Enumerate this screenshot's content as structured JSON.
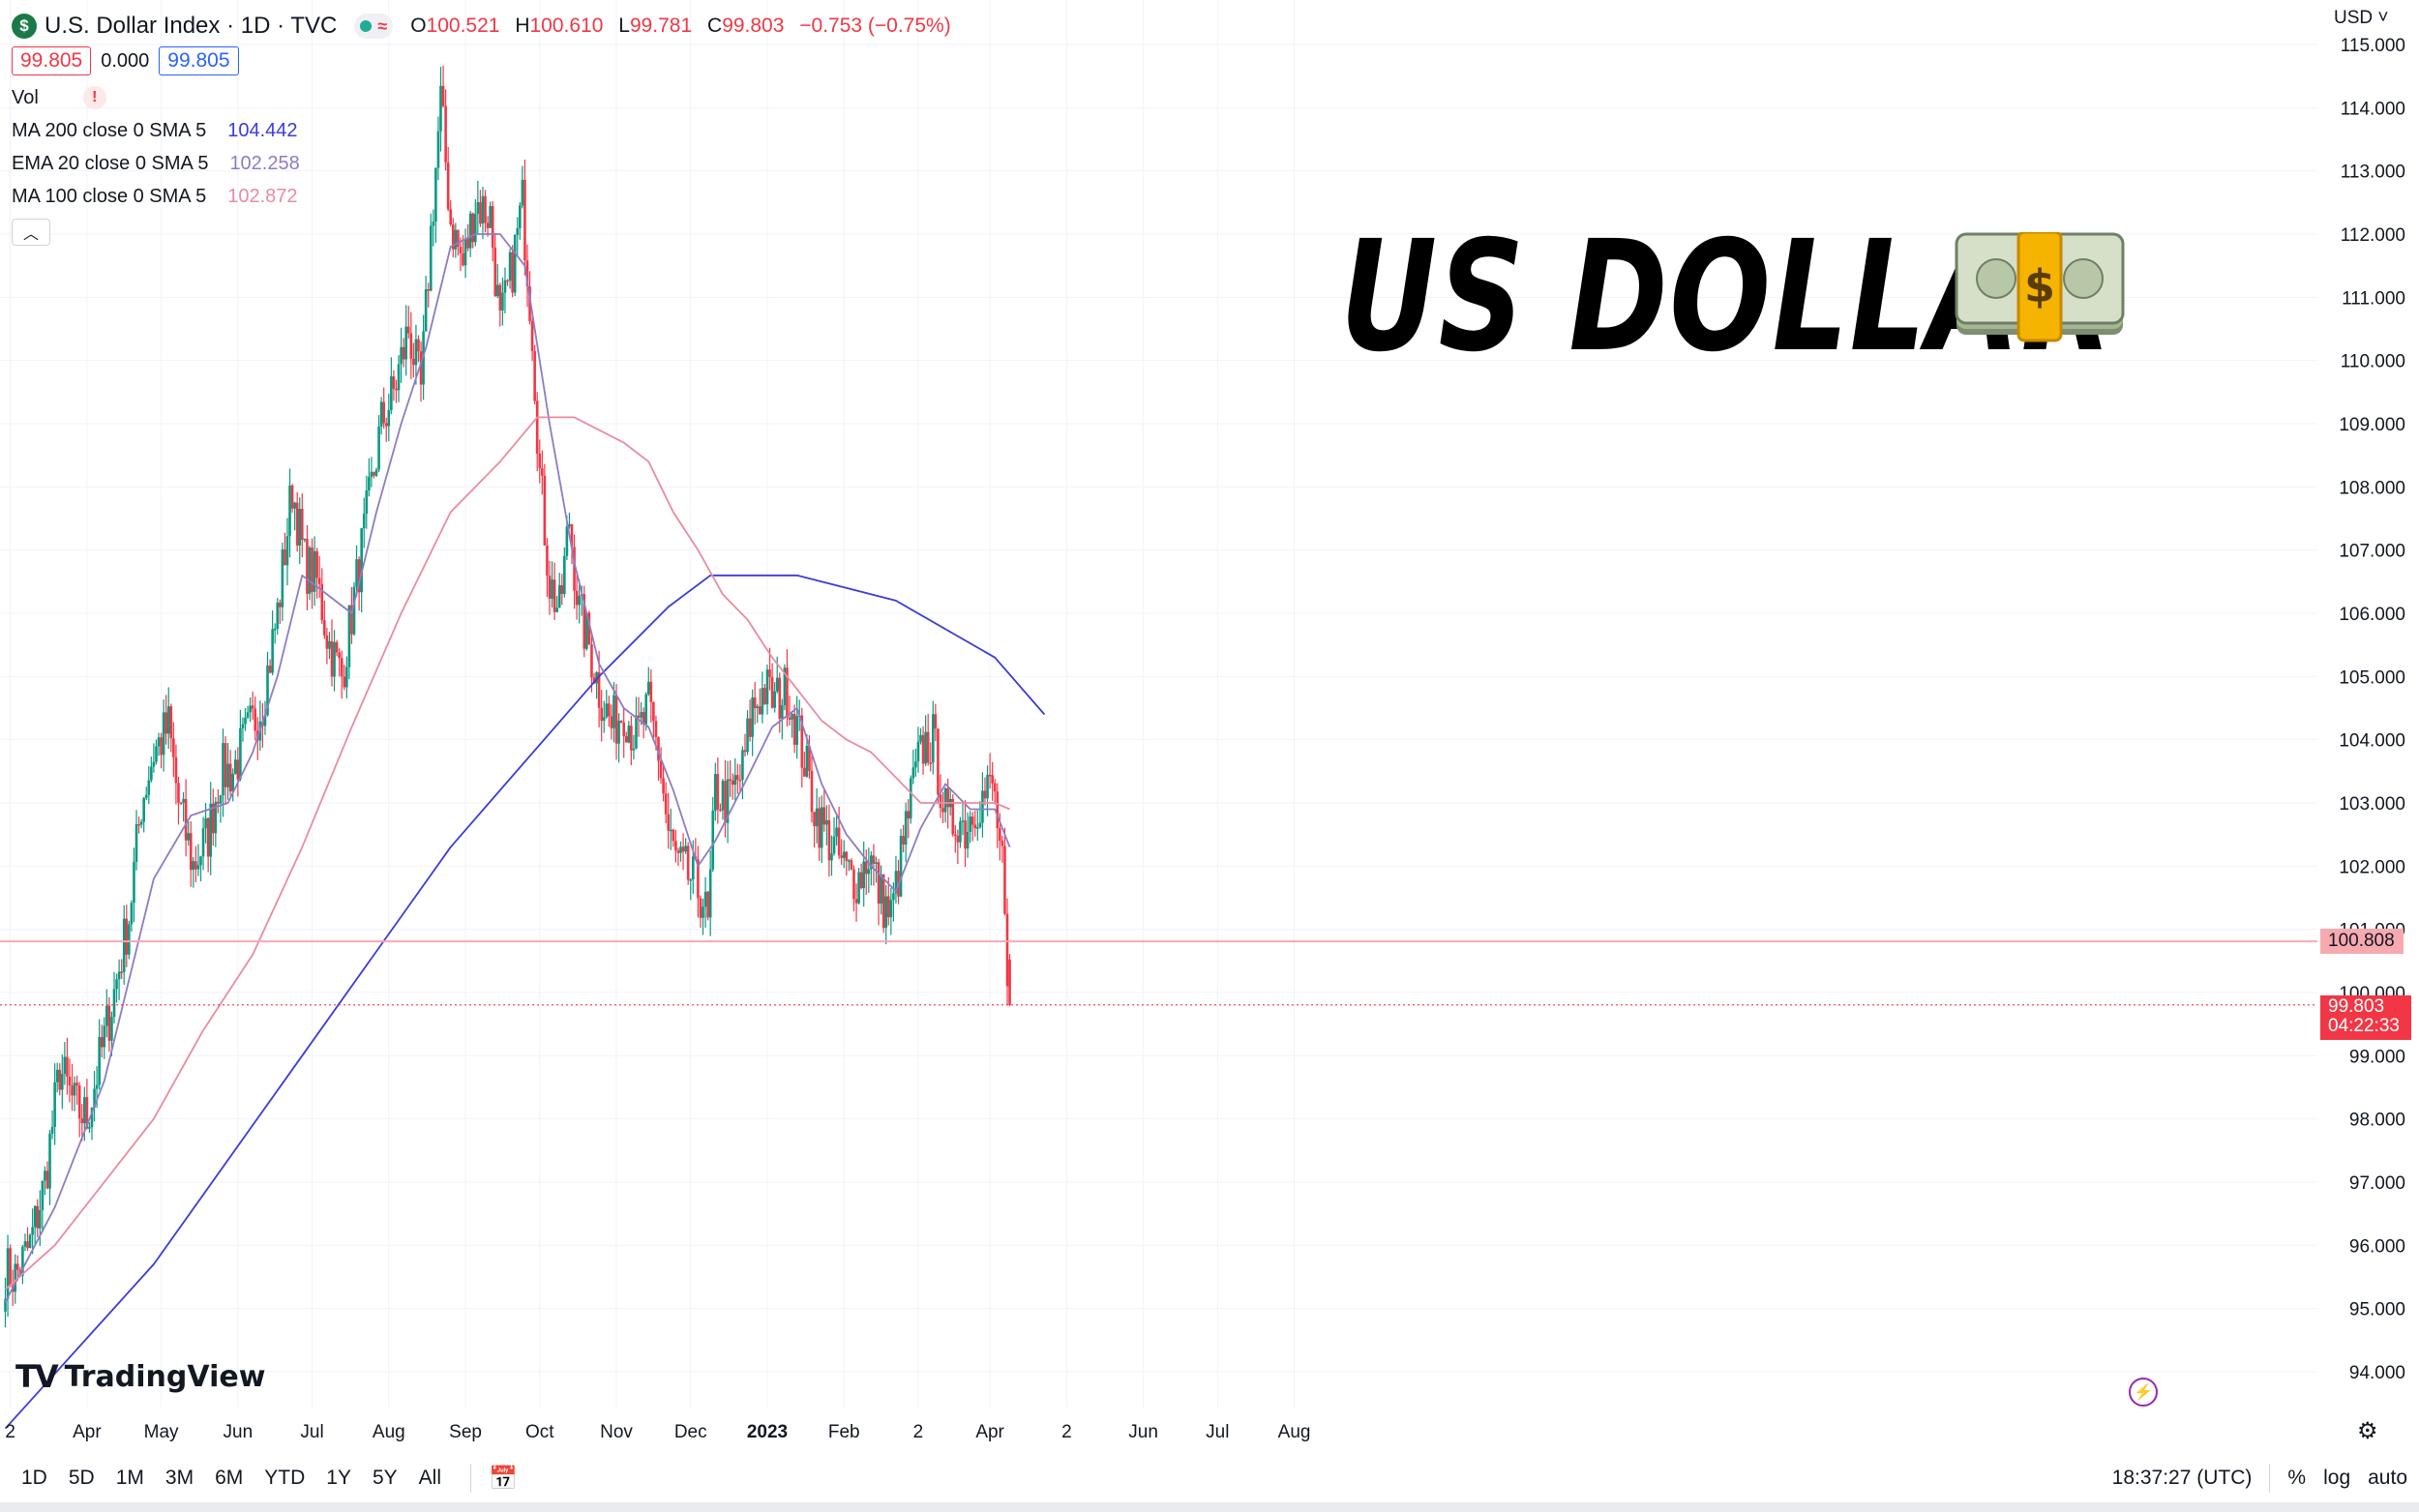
{
  "legend": {
    "symbol_icon": "$",
    "title": "U.S. Dollar Index · 1D · TVC",
    "ohlc": {
      "o_label": "O",
      "o": "100.521",
      "h_label": "H",
      "h": "100.610",
      "l_label": "L",
      "l": "99.781",
      "c_label": "C",
      "c": "99.803",
      "change": "−0.753 (−0.75%)"
    },
    "box_left": "99.805",
    "box_mid": "0.000",
    "box_right": "99.805",
    "vol_label": "Vol",
    "indicators": [
      {
        "label": "MA 200 close 0 SMA 5",
        "value": "104.442",
        "color": "#3b3bdc"
      },
      {
        "label": "EMA 20 close 0 SMA 5",
        "value": "102.258",
        "color": "#8e7cc3"
      },
      {
        "label": "MA 100 close 0 SMA 5",
        "value": "102.872",
        "color": "#e98ca0"
      }
    ]
  },
  "overlay": {
    "big_title": "US DOLLAR",
    "money_icon": "dollar-banknote-icon"
  },
  "currency": "USD",
  "price_tags": {
    "level": "100.808",
    "last_price": "99.803",
    "countdown": "04:22:33"
  },
  "logo": {
    "mark": "TV",
    "text": "TradingView"
  },
  "toolbar": {
    "timeframes": [
      "1D",
      "5D",
      "1M",
      "3M",
      "6M",
      "YTD",
      "1Y",
      "5Y",
      "All"
    ],
    "time": "18:37:27 (UTC)",
    "percent": "%",
    "log": "log",
    "auto": "auto"
  },
  "chart_data": {
    "type": "candlestick",
    "title": "U.S. Dollar Index · 1D · TVC",
    "ylabel": "",
    "ylim": [
      93.6,
      115.1
    ],
    "y_ticks": [
      "94.000",
      "95.000",
      "96.000",
      "97.000",
      "98.000",
      "99.000",
      "100.000",
      "101.000",
      "102.000",
      "103.000",
      "104.000",
      "105.000",
      "106.000",
      "107.000",
      "108.000",
      "109.000",
      "110.000",
      "111.000",
      "112.000",
      "113.000",
      "114.000",
      "115.000"
    ],
    "x_ticks": [
      {
        "label": "2",
        "t": 2
      },
      {
        "label": "Apr",
        "t": 33
      },
      {
        "label": "May",
        "t": 63
      },
      {
        "label": "Jun",
        "t": 94
      },
      {
        "label": "Jul",
        "t": 124
      },
      {
        "label": "Aug",
        "t": 155
      },
      {
        "label": "Sep",
        "t": 186
      },
      {
        "label": "Oct",
        "t": 216
      },
      {
        "label": "Nov",
        "t": 247
      },
      {
        "label": "Dec",
        "t": 277
      },
      {
        "label": "2023",
        "t": 308,
        "bold": true
      },
      {
        "label": "Feb",
        "t": 339
      },
      {
        "label": "2",
        "t": 369
      },
      {
        "label": "Apr",
        "t": 398
      },
      {
        "label": "2",
        "t": 429
      },
      {
        "label": "Jun",
        "t": 460
      },
      {
        "label": "Jul",
        "t": 490
      },
      {
        "label": "Aug",
        "t": 521
      }
    ],
    "close_anchors": [
      [
        0,
        95.6
      ],
      [
        4,
        95.5
      ],
      [
        10,
        96.0
      ],
      [
        16,
        97.0
      ],
      [
        22,
        98.8
      ],
      [
        28,
        98.2
      ],
      [
        33,
        98.0
      ],
      [
        38,
        98.9
      ],
      [
        44,
        100.0
      ],
      [
        50,
        101.2
      ],
      [
        55,
        103.0
      ],
      [
        60,
        103.8
      ],
      [
        66,
        104.2
      ],
      [
        70,
        103.0
      ],
      [
        76,
        102.0
      ],
      [
        82,
        102.5
      ],
      [
        87,
        103.5
      ],
      [
        92,
        103.5
      ],
      [
        97,
        104.0
      ],
      [
        104,
        104.6
      ],
      [
        110,
        106.0
      ],
      [
        116,
        108.0
      ],
      [
        121,
        106.8
      ],
      [
        126,
        106.5
      ],
      [
        131,
        105.5
      ],
      [
        136,
        105.0
      ],
      [
        142,
        106.5
      ],
      [
        148,
        108.0
      ],
      [
        152,
        109.0
      ],
      [
        157,
        109.5
      ],
      [
        163,
        110.5
      ],
      [
        168,
        109.5
      ],
      [
        172,
        112.0
      ],
      [
        176,
        114.1
      ],
      [
        180,
        112.2
      ],
      [
        185,
        111.5
      ],
      [
        190,
        112.5
      ],
      [
        196,
        112.3
      ],
      [
        200,
        110.5
      ],
      [
        205,
        111.5
      ],
      [
        209,
        112.5
      ],
      [
        213,
        110.5
      ],
      [
        216,
        108.2
      ],
      [
        220,
        106.5
      ],
      [
        224,
        106.0
      ],
      [
        228,
        107.5
      ],
      [
        232,
        106.0
      ],
      [
        236,
        105.5
      ],
      [
        240,
        104.8
      ],
      [
        245,
        104.2
      ],
      [
        250,
        104.5
      ],
      [
        255,
        104.0
      ],
      [
        260,
        104.5
      ],
      [
        264,
        103.8
      ],
      [
        268,
        102.5
      ],
      [
        272,
        102.0
      ],
      [
        277,
        101.8
      ],
      [
        282,
        101.5
      ],
      [
        284,
        101.0
      ],
      [
        287,
        103.2
      ],
      [
        292,
        103.0
      ],
      [
        298,
        103.5
      ],
      [
        302,
        104.5
      ],
      [
        307,
        104.8
      ],
      [
        311,
        104.6
      ],
      [
        316,
        104.8
      ],
      [
        320,
        104.2
      ],
      [
        324,
        103.5
      ],
      [
        328,
        102.8
      ],
      [
        332,
        102.5
      ],
      [
        336,
        102.2
      ],
      [
        340,
        101.9
      ],
      [
        345,
        101.8
      ],
      [
        349,
        102.2
      ],
      [
        354,
        101.5
      ],
      [
        358,
        101.2
      ],
      [
        362,
        102.1
      ],
      [
        367,
        103.3
      ],
      [
        371,
        103.9
      ],
      [
        375,
        104.0
      ],
      [
        378,
        103.3
      ],
      [
        381,
        102.6
      ],
      [
        385,
        102.8
      ],
      [
        388,
        102.6
      ],
      [
        392,
        103.0
      ],
      [
        396,
        103.1
      ],
      [
        399,
        103.3
      ],
      [
        401,
        102.7
      ],
      [
        403,
        101.9
      ],
      [
        405,
        100.1
      ],
      [
        406,
        99.8
      ]
    ],
    "last_ohlc": {
      "o": 100.521,
      "h": 100.61,
      "l": 99.781,
      "c": 99.803
    },
    "horizontal_line": 100.808,
    "last_price": 99.803,
    "series": [
      {
        "name": "MA 200 close 0 SMA 5",
        "color": "#3b3bdc",
        "points": [
          [
            0,
            93.1
          ],
          [
            60,
            95.7
          ],
          [
            120,
            99.0
          ],
          [
            180,
            102.3
          ],
          [
            240,
            105.0
          ],
          [
            268,
            106.1
          ],
          [
            285,
            106.6
          ],
          [
            320,
            106.6
          ],
          [
            360,
            106.2
          ],
          [
            400,
            105.3
          ],
          [
            420,
            104.4
          ]
        ]
      },
      {
        "name": "EMA 20 close 0 SMA 5",
        "color": "#8e7cc3",
        "points": [
          [
            0,
            95.1
          ],
          [
            20,
            96.6
          ],
          [
            40,
            98.6
          ],
          [
            60,
            101.8
          ],
          [
            75,
            102.8
          ],
          [
            90,
            103.0
          ],
          [
            100,
            103.8
          ],
          [
            110,
            105.0
          ],
          [
            120,
            106.6
          ],
          [
            130,
            106.3
          ],
          [
            140,
            106.0
          ],
          [
            150,
            107.6
          ],
          [
            160,
            109.0
          ],
          [
            170,
            110.2
          ],
          [
            180,
            111.8
          ],
          [
            190,
            112.0
          ],
          [
            200,
            112.0
          ],
          [
            210,
            111.5
          ],
          [
            220,
            109.0
          ],
          [
            230,
            106.8
          ],
          [
            240,
            105.2
          ],
          [
            250,
            104.5
          ],
          [
            260,
            104.2
          ],
          [
            270,
            103.2
          ],
          [
            280,
            102.0
          ],
          [
            287,
            102.4
          ],
          [
            300,
            103.4
          ],
          [
            310,
            104.2
          ],
          [
            320,
            104.5
          ],
          [
            330,
            103.3
          ],
          [
            340,
            102.5
          ],
          [
            350,
            102.0
          ],
          [
            360,
            101.6
          ],
          [
            370,
            102.6
          ],
          [
            380,
            103.3
          ],
          [
            390,
            102.9
          ],
          [
            400,
            102.9
          ],
          [
            406,
            102.3
          ]
        ]
      },
      {
        "name": "MA 100 close 0 SMA 5",
        "color": "#e98ca0",
        "points": [
          [
            0,
            95.3
          ],
          [
            20,
            96.0
          ],
          [
            40,
            97.0
          ],
          [
            60,
            98.0
          ],
          [
            80,
            99.4
          ],
          [
            100,
            100.6
          ],
          [
            120,
            102.3
          ],
          [
            140,
            104.2
          ],
          [
            160,
            106.0
          ],
          [
            180,
            107.6
          ],
          [
            200,
            108.4
          ],
          [
            215,
            109.1
          ],
          [
            230,
            109.1
          ],
          [
            250,
            108.7
          ],
          [
            260,
            108.4
          ],
          [
            270,
            107.6
          ],
          [
            280,
            107.0
          ],
          [
            290,
            106.3
          ],
          [
            300,
            105.9
          ],
          [
            310,
            105.3
          ],
          [
            320,
            104.8
          ],
          [
            330,
            104.3
          ],
          [
            340,
            104.0
          ],
          [
            350,
            103.8
          ],
          [
            360,
            103.4
          ],
          [
            370,
            103.0
          ],
          [
            380,
            103.0
          ],
          [
            390,
            103.0
          ],
          [
            400,
            103.0
          ],
          [
            406,
            102.9
          ]
        ]
      }
    ]
  }
}
